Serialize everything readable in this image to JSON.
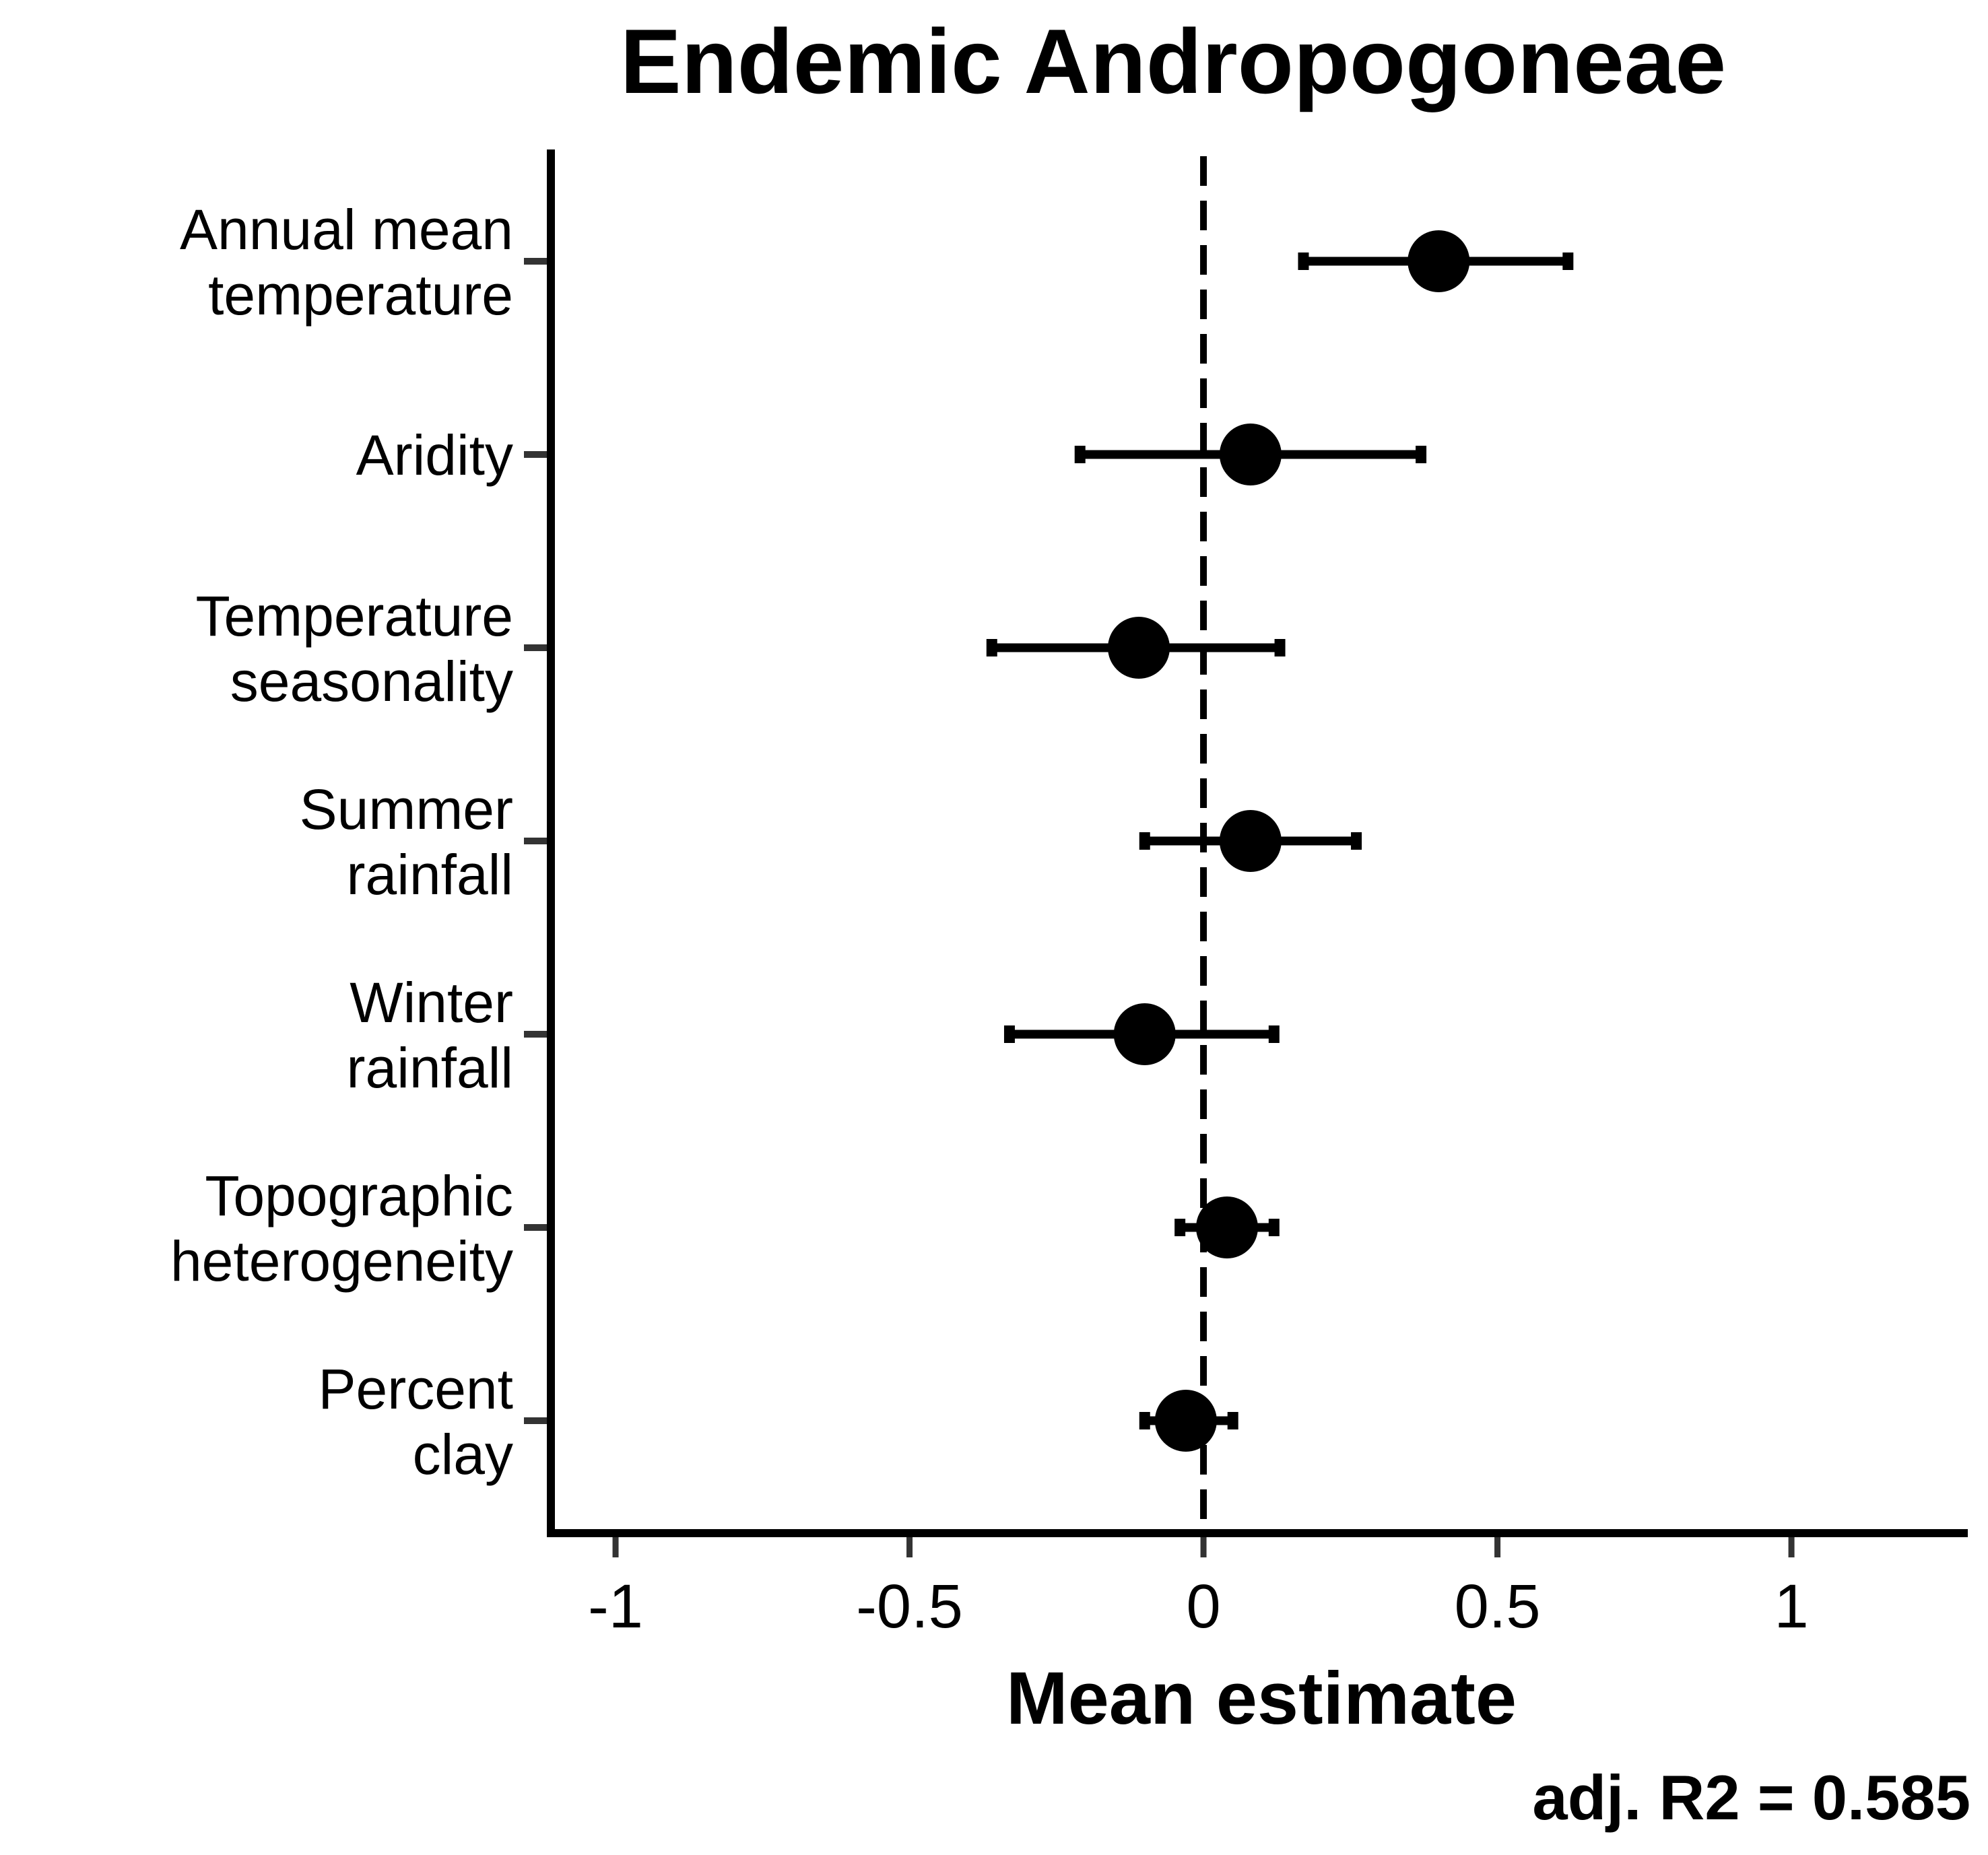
{
  "chart_data": {
    "type": "forest",
    "title": "Endemic Andropogoneae",
    "xlabel": "Mean estimate",
    "note": "adj. R2 = 0.585",
    "xlim": [
      -1.11,
      1.3
    ],
    "xticks": [
      -1,
      -0.5,
      0,
      0.5,
      1
    ],
    "xtick_labels": [
      "-1",
      "-0.5",
      "0",
      "0.5",
      "1"
    ],
    "reference_line": 0,
    "categories": [
      {
        "lines": [
          "Annual mean",
          "temperature"
        ],
        "estimate": 0.4,
        "low": 0.17,
        "high": 0.62
      },
      {
        "lines": [
          "Aridity"
        ],
        "estimate": 0.08,
        "low": -0.21,
        "high": 0.37
      },
      {
        "lines": [
          "Temperature",
          "seasonality"
        ],
        "estimate": -0.11,
        "low": -0.36,
        "high": 0.13
      },
      {
        "lines": [
          "Summer",
          "rainfall"
        ],
        "estimate": 0.08,
        "low": -0.1,
        "high": 0.26
      },
      {
        "lines": [
          "Winter",
          "rainfall"
        ],
        "estimate": -0.1,
        "low": -0.33,
        "high": 0.12
      },
      {
        "lines": [
          "Topographic",
          "heterogeneity"
        ],
        "estimate": 0.04,
        "low": -0.04,
        "high": 0.12
      },
      {
        "lines": [
          "Percent",
          "clay"
        ],
        "estimate": -0.03,
        "low": -0.1,
        "high": 0.05
      }
    ],
    "colors": {
      "marker": "#000000",
      "axis": "#000000",
      "tick_marks": "#333333"
    }
  }
}
